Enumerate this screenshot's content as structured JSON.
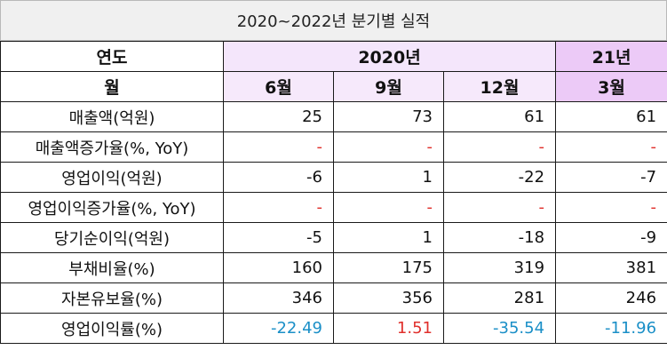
{
  "title": "2020~2022년 분기별 실적",
  "header": {
    "year_label": "연도",
    "month_label": "월",
    "year_2020": "2020년",
    "year_21": "21년",
    "months": [
      "6월",
      "9월",
      "12월",
      "3월"
    ]
  },
  "rows": [
    {
      "label": "매출액(억원)",
      "values": [
        "25",
        "73",
        "61",
        "61"
      ]
    },
    {
      "label": "매출액증가율(%, YoY)",
      "values": [
        "-",
        "-",
        "-",
        "-"
      ]
    },
    {
      "label": "영업이익(억원)",
      "values": [
        "-6",
        "1",
        "-22",
        "-7"
      ]
    },
    {
      "label": "영업이익증가율(%, YoY)",
      "values": [
        "-",
        "-",
        "-",
        "-"
      ]
    },
    {
      "label": "당기순이익(억원)",
      "values": [
        "-5",
        "1",
        "-18",
        "-9"
      ]
    },
    {
      "label": "부채비율(%)",
      "values": [
        "160",
        "175",
        "319",
        "381"
      ]
    },
    {
      "label": "자본유보율(%)",
      "values": [
        "346",
        "356",
        "281",
        "246"
      ]
    },
    {
      "label": "영업이익률(%)",
      "values": [
        "-22.49",
        "1.51",
        "-35.54",
        "-11.96"
      ]
    }
  ],
  "colors": {
    "dash": "#e0302c",
    "negative_margin": "#1a8fc7",
    "positive_margin": "#e0302c",
    "header_2020_bg": "#f4e6fb",
    "header_21_bg": "#eccaf7"
  }
}
